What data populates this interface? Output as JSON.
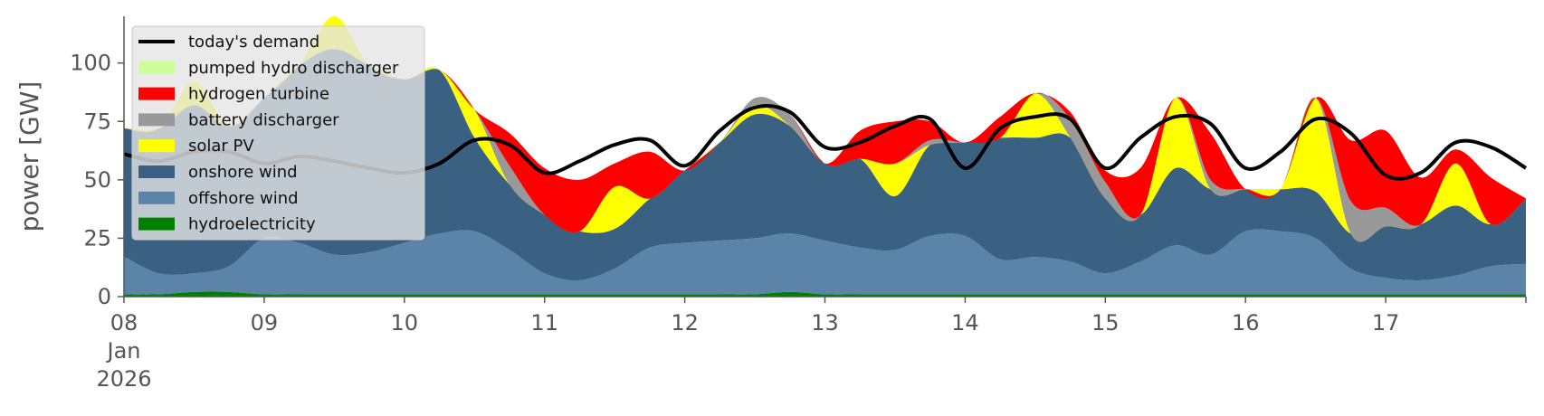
{
  "chart_data": {
    "type": "area",
    "stacked": true,
    "ylabel": "power [GW]",
    "xlabel": "",
    "ylim": [
      0,
      120
    ],
    "yticks": [
      0,
      25,
      50,
      75,
      100
    ],
    "x_range": [
      "2026-01-08 00:00",
      "2026-01-18 00:00"
    ],
    "xticks": [
      {
        "date": "2026-01-08",
        "label": [
          "08",
          "Jan",
          "2026"
        ]
      },
      {
        "date": "2026-01-09",
        "label": [
          "09"
        ]
      },
      {
        "date": "2026-01-10",
        "label": [
          "10"
        ]
      },
      {
        "date": "2026-01-11",
        "label": [
          "11"
        ]
      },
      {
        "date": "2026-01-12",
        "label": [
          "12"
        ]
      },
      {
        "date": "2026-01-13",
        "label": [
          "13"
        ]
      },
      {
        "date": "2026-01-14",
        "label": [
          "14"
        ]
      },
      {
        "date": "2026-01-15",
        "label": [
          "15"
        ]
      },
      {
        "date": "2026-01-16",
        "label": [
          "16"
        ]
      },
      {
        "date": "2026-01-17",
        "label": [
          "17"
        ]
      }
    ],
    "grid": false,
    "legend_position": "top-left",
    "x": [
      "2026-01-08 00:00",
      "2026-01-08 06:00",
      "2026-01-08 12:00",
      "2026-01-08 18:00",
      "2026-01-09 00:00",
      "2026-01-09 06:00",
      "2026-01-09 12:00",
      "2026-01-09 18:00",
      "2026-01-10 00:00",
      "2026-01-10 06:00",
      "2026-01-10 12:00",
      "2026-01-10 18:00",
      "2026-01-11 00:00",
      "2026-01-11 06:00",
      "2026-01-11 12:00",
      "2026-01-11 18:00",
      "2026-01-12 00:00",
      "2026-01-12 06:00",
      "2026-01-12 12:00",
      "2026-01-12 18:00",
      "2026-01-13 00:00",
      "2026-01-13 06:00",
      "2026-01-13 12:00",
      "2026-01-13 18:00",
      "2026-01-14 00:00",
      "2026-01-14 06:00",
      "2026-01-14 12:00",
      "2026-01-14 18:00",
      "2026-01-15 00:00",
      "2026-01-15 06:00",
      "2026-01-15 12:00",
      "2026-01-15 18:00",
      "2026-01-16 00:00",
      "2026-01-16 06:00",
      "2026-01-16 12:00",
      "2026-01-16 18:00",
      "2026-01-17 00:00",
      "2026-01-17 06:00",
      "2026-01-17 12:00",
      "2026-01-17 18:00",
      "2026-01-18 00:00"
    ],
    "series": [
      {
        "name": "hydroelectricity",
        "color": "#008000",
        "values": [
          1,
          1,
          2,
          2,
          1,
          1,
          1,
          1,
          1,
          1,
          1,
          1,
          1,
          1,
          1,
          1,
          1,
          1,
          1,
          2,
          1,
          1,
          1,
          1,
          1,
          1,
          1,
          1,
          1,
          1,
          1,
          1,
          1,
          1,
          1,
          1,
          1,
          1,
          1,
          1,
          1
        ]
      },
      {
        "name": "offshore wind",
        "color": "#5b84a8",
        "values": [
          16,
          9,
          8,
          11,
          24,
          22,
          17,
          18,
          22,
          26,
          27,
          19,
          9,
          6,
          11,
          20,
          22,
          23,
          24,
          25,
          23,
          20,
          19,
          25,
          25,
          15,
          16,
          14,
          9,
          14,
          21,
          17,
          27,
          27,
          24,
          11,
          7,
          6,
          8,
          12,
          13
        ]
      },
      {
        "name": "onshore wind",
        "color": "#3b6182",
        "values": [
          55,
          62,
          72,
          60,
          60,
          76,
          88,
          80,
          70,
          70,
          40,
          28,
          25,
          21,
          17,
          21,
          31,
          42,
          53,
          46,
          33,
          38,
          23,
          39,
          40,
          52,
          51,
          53,
          32,
          20,
          33,
          28,
          18,
          18,
          20,
          15,
          22,
          24,
          30,
          18,
          28
        ]
      },
      {
        "name": "solar PV",
        "color": "#ffff00",
        "values": [
          0,
          0,
          10,
          0,
          0,
          0,
          14,
          0,
          0,
          0,
          12,
          0,
          0,
          0,
          18,
          0,
          0,
          0,
          4,
          0,
          0,
          0,
          14,
          0,
          0,
          0,
          19,
          0,
          0,
          0,
          30,
          0,
          0,
          0,
          40,
          0,
          0,
          0,
          18,
          0,
          0
        ]
      },
      {
        "name": "battery discharger",
        "color": "#999999",
        "values": [
          0,
          0,
          0,
          0,
          0,
          0,
          0,
          0,
          0,
          0,
          0,
          8,
          0,
          0,
          0,
          0,
          0,
          0,
          3,
          5,
          0,
          0,
          0,
          2,
          0,
          0,
          0,
          8,
          7,
          0,
          0,
          4,
          0,
          0,
          0,
          14,
          8,
          0,
          0,
          0,
          0
        ]
      },
      {
        "name": "hydrogen turbine",
        "color": "#ff0000",
        "values": [
          0,
          0,
          0,
          0,
          0,
          0,
          0,
          0,
          0,
          0,
          0,
          14,
          20,
          22,
          10,
          20,
          0,
          0,
          0,
          0,
          0,
          12,
          18,
          8,
          0,
          9,
          0,
          3,
          5,
          20,
          0,
          20,
          0,
          0,
          0,
          26,
          33,
          20,
          6,
          20,
          0
        ]
      },
      {
        "name": "pumped hydro discharger",
        "color": "#ccff99",
        "values": [
          0,
          0,
          0,
          0,
          0,
          0,
          0,
          0,
          0,
          0,
          0,
          0,
          0,
          0,
          0,
          0,
          0,
          0,
          0,
          0,
          0,
          0,
          0,
          0,
          0,
          0,
          0,
          0,
          0,
          0,
          0,
          0,
          0,
          0,
          0,
          0,
          0,
          0,
          0,
          0,
          0
        ]
      }
    ],
    "line_series": {
      "name": "today's demand",
      "color": "#000000",
      "values": [
        61,
        58,
        62,
        62,
        57,
        60,
        58,
        55,
        53,
        57,
        67,
        65,
        53,
        58,
        65,
        67,
        56,
        71,
        81,
        79,
        64,
        66,
        73,
        76,
        55,
        72,
        77,
        76,
        55,
        68,
        77,
        74,
        55,
        62,
        76,
        70,
        52,
        53,
        66,
        64,
        55
      ]
    },
    "legend": [
      "today's demand",
      "pumped hydro discharger",
      "hydrogen turbine",
      "battery discharger",
      "solar PV",
      "onshore wind",
      "offshore wind",
      "hydroelectricity"
    ]
  }
}
